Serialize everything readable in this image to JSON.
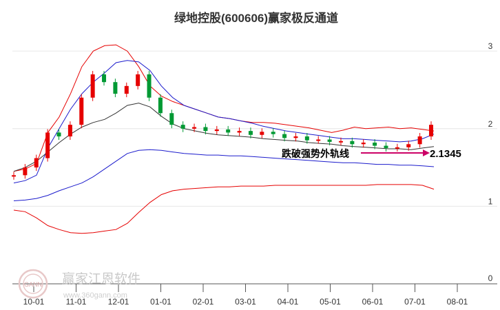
{
  "chart_data": {
    "type": "candlestick",
    "title": "绿地控股(600606)赢家极反通道",
    "x_ticks": [
      "10-01",
      "11-01",
      "12-01",
      "01-01",
      "02-01",
      "03-01",
      "04-01",
      "05-01",
      "06-01",
      "07-01",
      "08-01"
    ],
    "y_ticks": [
      "3",
      "2",
      "1",
      "0"
    ],
    "ylim": [
      0,
      3.25
    ],
    "grid": true,
    "annotation": {
      "text": "跌破强势外轨线",
      "value": "2.1345"
    },
    "series": [
      {
        "color": "#e60000",
        "values": [
          1.45,
          1.48,
          1.55,
          1.95,
          2.15,
          2.45,
          2.8,
          3.0,
          3.07,
          3.08,
          3.0,
          2.8,
          2.55,
          2.42,
          2.35,
          2.3,
          2.25,
          2.2,
          2.15,
          2.13,
          2.1,
          2.08,
          2.08,
          2.07,
          2.05,
          2.03,
          2.01,
          1.98,
          1.95,
          1.98,
          2.02,
          2.0,
          2.01,
          2.02,
          2.0,
          2.01,
          1.99,
          1.97
        ]
      },
      {
        "color": "#1a1acc",
        "values": [
          1.3,
          1.33,
          1.4,
          1.75,
          2.0,
          2.25,
          2.45,
          2.6,
          2.72,
          2.85,
          2.88,
          2.86,
          2.75,
          2.55,
          2.4,
          2.3,
          2.25,
          2.2,
          2.15,
          2.13,
          2.1,
          2.07,
          2.03,
          2.0,
          1.97,
          1.95,
          1.93,
          1.91,
          1.89,
          1.87,
          1.87,
          1.86,
          1.85,
          1.84,
          1.83,
          1.84,
          1.87,
          1.93
        ]
      },
      {
        "color": "#333333",
        "values": [
          1.45,
          1.5,
          1.58,
          1.7,
          1.82,
          1.93,
          2.02,
          2.08,
          2.12,
          2.2,
          2.3,
          2.33,
          2.28,
          2.16,
          2.06,
          2.0,
          1.97,
          1.94,
          1.92,
          1.91,
          1.9,
          1.89,
          1.87,
          1.86,
          1.85,
          1.84,
          1.82,
          1.81,
          1.8,
          1.78,
          1.77,
          1.76,
          1.75,
          1.74,
          1.74,
          1.73,
          1.75,
          1.77
        ]
      },
      {
        "color": "#1a1acc",
        "values": [
          1.07,
          1.08,
          1.1,
          1.14,
          1.2,
          1.25,
          1.3,
          1.38,
          1.48,
          1.58,
          1.68,
          1.72,
          1.73,
          1.72,
          1.7,
          1.68,
          1.67,
          1.66,
          1.66,
          1.65,
          1.65,
          1.64,
          1.63,
          1.62,
          1.61,
          1.6,
          1.59,
          1.58,
          1.57,
          1.56,
          1.56,
          1.55,
          1.54,
          1.54,
          1.53,
          1.53,
          1.52,
          1.51
        ]
      },
      {
        "color": "#e60000",
        "values": [
          0.95,
          0.93,
          0.85,
          0.75,
          0.7,
          0.66,
          0.65,
          0.66,
          0.68,
          0.7,
          0.78,
          0.92,
          1.05,
          1.15,
          1.2,
          1.22,
          1.23,
          1.24,
          1.25,
          1.25,
          1.26,
          1.26,
          1.26,
          1.27,
          1.27,
          1.27,
          1.27,
          1.27,
          1.27,
          1.27,
          1.27,
          1.27,
          1.28,
          1.28,
          1.28,
          1.28,
          1.27,
          1.22
        ]
      }
    ],
    "candles": {
      "up_color": "#e60000",
      "down_color": "#009933",
      "close": [
        1.4,
        1.5,
        1.62,
        1.95,
        1.9,
        2.05,
        2.4,
        2.7,
        2.6,
        2.45,
        2.55,
        2.7,
        2.4,
        2.2,
        2.05,
        2.0,
        2.02,
        1.97,
        1.99,
        1.95,
        1.97,
        1.92,
        1.96,
        1.93,
        1.88,
        1.9,
        1.85,
        1.86,
        1.83,
        1.84,
        1.8,
        1.82,
        1.78,
        1.75,
        1.76,
        1.8,
        1.9,
        2.05
      ]
    }
  },
  "watermark": {
    "text": "赢家江恩软件",
    "url": "www.360gann.com",
    "logo": "GANN"
  }
}
